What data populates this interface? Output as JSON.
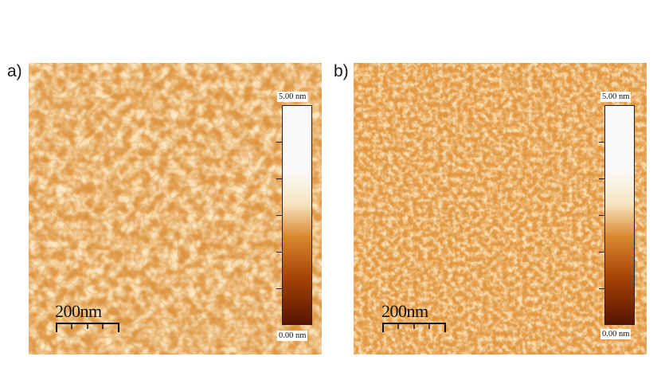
{
  "panels": [
    {
      "label": "a)",
      "scale_bar": "200nm",
      "colorbar": {
        "max": "5.00 nm",
        "min": "0.00 nm"
      },
      "texture": "coarse grains"
    },
    {
      "label": "b)",
      "scale_bar": "200nm",
      "colorbar": {
        "max": "5.00 nm",
        "min": "0.00 nm"
      },
      "texture": "fine grains"
    }
  ],
  "colormap": [
    "#5a1400",
    "#a84608",
    "#d9882e",
    "#f7e4c0",
    "#fafafa"
  ]
}
